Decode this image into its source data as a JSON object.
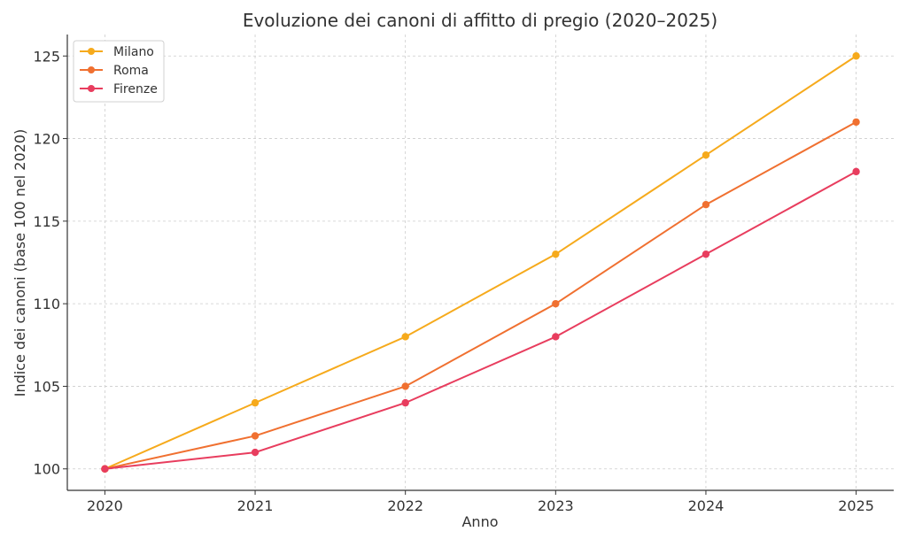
{
  "chart_data": {
    "type": "line",
    "title": "Evoluzione dei canoni di affitto di pregio (2020–2025)",
    "xlabel": "Anno",
    "ylabel": "Indice dei canoni (base 100 nel 2020)",
    "x": [
      2020,
      2021,
      2022,
      2023,
      2024,
      2025
    ],
    "x_ticks": [
      "2020",
      "2021",
      "2022",
      "2023",
      "2024",
      "2025"
    ],
    "y_ticks": [
      "100",
      "105",
      "110",
      "115",
      "120",
      "125"
    ],
    "ylim": [
      98.7,
      126.3
    ],
    "xlim": [
      2019.75,
      2025.25
    ],
    "grid": true,
    "legend_position": "top-left",
    "series": [
      {
        "name": "Milano",
        "color": "#F6AA1C",
        "values": [
          100,
          104,
          108,
          113,
          119,
          125
        ]
      },
      {
        "name": "Roma",
        "color": "#F07030",
        "values": [
          100,
          102,
          105,
          110,
          116,
          121
        ]
      },
      {
        "name": "Firenze",
        "color": "#E83D5E",
        "values": [
          100,
          101,
          104,
          108,
          113,
          118
        ]
      }
    ]
  }
}
